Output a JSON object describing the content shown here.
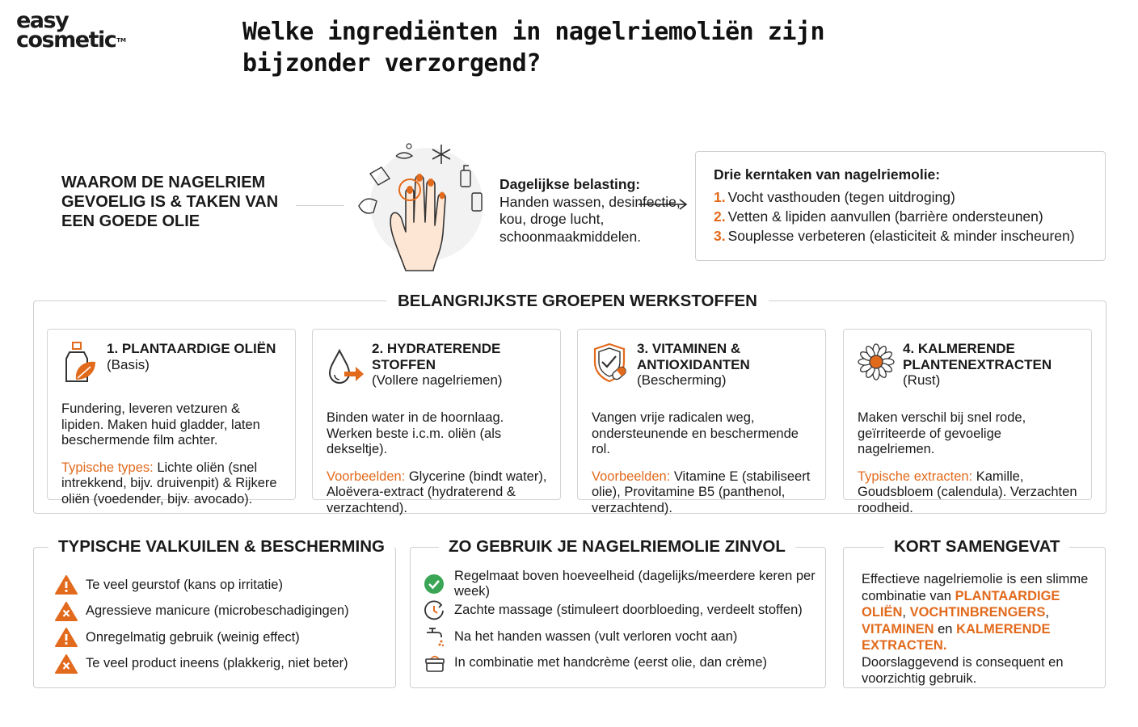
{
  "brand": {
    "line1": "easy",
    "line2": "cosmetic",
    "tm": "TM"
  },
  "title": "Welke ingrediënten in nagelriemoliën zijn bijzonder verzorgend?",
  "intro": {
    "why": "WAAROM DE NAGELRIEM GEVOELIG IS & TAKEN VAN EEN GOEDE OLIE",
    "load_title": "Dagelijkse belasting:",
    "load_text": "Handen wassen, desinfectie, kou, droge lucht, schoonmaakmiddelen.",
    "tasks_title": "Drie kerntaken van nagelriemolie:",
    "tasks": [
      {
        "num": "1.",
        "text": "Vocht vasthouden (tegen uitdroging)"
      },
      {
        "num": "2.",
        "text": "Vetten & lipiden aanvullen (barrière ondersteunen)"
      },
      {
        "num": "3.",
        "text": "Souplesse verbeteren (elasticiteit & minder inscheuren)"
      }
    ]
  },
  "groups": {
    "title": "BELANGRIJKSTE GROEPEN WERKSTOFFEN",
    "cards": [
      {
        "title": "1. PLANTAARDIGE OLIËN",
        "sub": "(Basis)",
        "icon": "oil-bottle-leaf-icon",
        "desc": "Fundering, leveren vetzuren & lipiden. Maken huid gladder, laten beschermende film achter.",
        "ex_label": "Typische types:",
        "ex_text": " Lichte oliën (snel intrekkend, bijv. druivenpit) & Rijkere oliën (voedender, bijv. avocado)."
      },
      {
        "title": "2. HYDRATERENDE STOFFEN",
        "sub": "(Vollere nagelriemen)",
        "icon": "water-drop-arrow-icon",
        "desc": "Binden water in de hoornlaag. Werken beste i.c.m. oliën (als dekseltje).",
        "ex_label": "Voorbeelden:",
        "ex_text": " Glycerine (bindt water), Aloëvera-extract (hydraterend & verzachtend)."
      },
      {
        "title": "3. VITAMINEN & ANTIOXIDANTEN",
        "sub": "(Bescherming)",
        "icon": "shield-capsule-icon",
        "desc": "Vangen vrije radicalen weg, ondersteunende en beschermende rol.",
        "ex_label": "Voorbeelden:",
        "ex_text": " Vitamine E (stabiliseert olie), Provitamine B5 (panthenol, verzachtend)."
      },
      {
        "title": "4. KALMERENDE PLANTENEXTRACTEN",
        "sub": "(Rust)",
        "icon": "chamomile-flower-icon",
        "desc": "Maken verschil bij snel rode, geïrriteerde of gevoelige nagelriemen.",
        "ex_label": "Typische extracten:",
        "ex_text": " Kamille, Goudsbloem (calendula). Verzachten roodheid."
      }
    ]
  },
  "pitfalls": {
    "title": "TYPISCHE VALKUILEN & BESCHERMING",
    "items": [
      {
        "icon": "warning-icon",
        "text": "Te veel geurstof (kans op irritatie)"
      },
      {
        "icon": "cross-warning-icon",
        "text": "Agressieve manicure (microbeschadigingen)"
      },
      {
        "icon": "warning-icon",
        "text": "Onregelmatig gebruik (weinig effect)"
      },
      {
        "icon": "cross-warning-icon",
        "text": "Te veel product ineens (plakkerig, niet beter)"
      }
    ]
  },
  "usage": {
    "title": "ZO GEBRUIK JE NAGELRIEMOLIE ZINVOL",
    "items": [
      {
        "icon": "check-circle-icon",
        "text": "Regelmaat boven hoeveelheid (dagelijks/meerdere keren per week)"
      },
      {
        "icon": "clock-massage-icon",
        "text": "Zachte massage (stimuleert doorbloeding, verdeelt stoffen)"
      },
      {
        "icon": "faucet-icon",
        "text": "Na het handen wassen (vult verloren vocht aan)"
      },
      {
        "icon": "cream-jar-icon",
        "text": "In combinatie met handcrème (eerst olie, dan crème)"
      }
    ]
  },
  "summary": {
    "title": "KORT SAMENGEVAT",
    "p1": "Effectieve nagelriemolie is een slimme combinatie van ",
    "h1": "PLANTAARDIGE OLIËN",
    "c1": ", ",
    "h2": "VOCHTINBRENGERS",
    "c2": ", ",
    "h3": "VITAMINEN",
    "c3": " en ",
    "h4": "KALMERENDE EXTRACTEN",
    "c4": ".",
    "p2": "Doorslaggevend is consequent en voorzichtig gebruik."
  },
  "colors": {
    "accent": "#e26a1c",
    "border": "#cfcfcf",
    "check": "#3aa655"
  }
}
